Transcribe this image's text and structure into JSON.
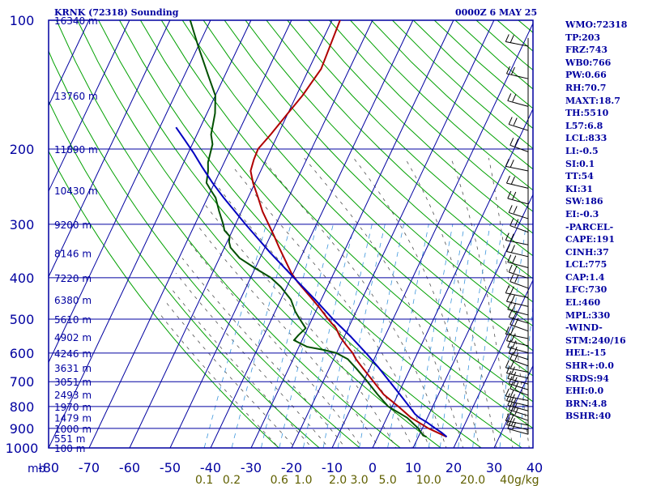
{
  "header": {
    "title": "KRNK (72318) Sounding",
    "datetime": "0000Z  6 MAY 25"
  },
  "stats": [
    "WMO:72318",
    "TP:203",
    "FRZ:743",
    "WB0:766",
    "PW:0.66",
    "RH:70.7",
    "MAXT:18.7",
    "TH:5510",
    "L57:6.8",
    "LCL:833",
    "LI:-0.5",
    "SI:0.1",
    "TT:54",
    "KI:31",
    "SW:186",
    "EI:-0.3",
    "-PARCEL-",
    "CAPE:191",
    "CINH:37",
    "LCL:775",
    "CAP:1.4",
    "LFC:730",
    "EL:460",
    "MPL:330",
    "-WIND-",
    "STM:240/16",
    "HEL:-15",
    "SHR+:0.0",
    "SRDS:94",
    "EHI:0.0",
    "BRN:4.8",
    "BSHR:40"
  ],
  "colors": {
    "frame": "#0000a0",
    "dry_adiabat": "#00a000",
    "moist_adiabat": "#505050",
    "mixing_ratio": "#3c96dc",
    "temperature": "#b00000",
    "dewpoint": "#005000",
    "parcel": "#0000c0",
    "mixing_ratio_labels": "#606000"
  },
  "chart_data": {
    "type": "skew-t",
    "x_axis_unit": "mb",
    "pressure_ticks": [
      100,
      200,
      300,
      400,
      500,
      600,
      700,
      800,
      900,
      1000
    ],
    "pressure_levels": [
      1000,
      950,
      900,
      850,
      800,
      750,
      700,
      650,
      600,
      550,
      500,
      450,
      400,
      350,
      300,
      250,
      200,
      150,
      100
    ],
    "height_labels": [
      {
        "p": 100,
        "label": "16340 m"
      },
      {
        "p": 150,
        "label": "13760 m"
      },
      {
        "p": 200,
        "label": "11890 m"
      },
      {
        "p": 250,
        "label": "10430 m"
      },
      {
        "p": 300,
        "label": "9200 m"
      },
      {
        "p": 350,
        "label": "8146 m"
      },
      {
        "p": 400,
        "label": "7220 m"
      },
      {
        "p": 450,
        "label": "6380 m"
      },
      {
        "p": 500,
        "label": "5610 m"
      },
      {
        "p": 550,
        "label": "4902 m"
      },
      {
        "p": 600,
        "label": "4246 m"
      },
      {
        "p": 650,
        "label": "3631 m"
      },
      {
        "p": 700,
        "label": "3051 m"
      },
      {
        "p": 750,
        "label": "2493 m"
      },
      {
        "p": 800,
        "label": "1970 m"
      },
      {
        "p": 850,
        "label": "1479 m"
      },
      {
        "p": 900,
        "label": "1000 m"
      },
      {
        "p": 950,
        "label": "551 m"
      },
      {
        "p": 1000,
        "label": "100 m"
      }
    ],
    "temperature_ticks": [
      -80,
      -70,
      -60,
      -50,
      -40,
      -30,
      -20,
      -10,
      0,
      10,
      20,
      30,
      40
    ],
    "mixing_ratio_ticks": [
      {
        "w": 0.1,
        "label": "0.1"
      },
      {
        "w": 0.2,
        "label": "0.2"
      },
      {
        "w": 0.6,
        "label": "0.6"
      },
      {
        "w": 1.0,
        "label": "1.0"
      },
      {
        "w": 2.0,
        "label": "2.0"
      },
      {
        "w": 3.0,
        "label": "3.0"
      },
      {
        "w": 5.0,
        "label": "5.0"
      },
      {
        "w": 10.0,
        "label": "10.0"
      },
      {
        "w": 20.0,
        "label": "20.0"
      },
      {
        "w": 40.0,
        "label": "40g/kg"
      }
    ],
    "series": [
      {
        "key": "temperature",
        "points": [
          [
            942,
            17.0
          ],
          [
            900,
            11.5
          ],
          [
            850,
            6.0
          ],
          [
            800,
            1.5
          ],
          [
            750,
            -3.5
          ],
          [
            700,
            -7.5
          ],
          [
            650,
            -11.8
          ],
          [
            620,
            -14.5
          ],
          [
            600,
            -16.0
          ],
          [
            575,
            -18.5
          ],
          [
            550,
            -21.0
          ],
          [
            525,
            -23.0
          ],
          [
            500,
            -26.0
          ],
          [
            470,
            -29.5
          ],
          [
            440,
            -33.5
          ],
          [
            410,
            -37.8
          ],
          [
            390,
            -40.5
          ],
          [
            360,
            -44.0
          ],
          [
            340,
            -46.5
          ],
          [
            320,
            -49.0
          ],
          [
            300,
            -51.8
          ],
          [
            280,
            -54.8
          ],
          [
            260,
            -57.5
          ],
          [
            240,
            -60.5
          ],
          [
            225,
            -62.5
          ],
          [
            212,
            -63.0
          ],
          [
            200,
            -63.2
          ],
          [
            185,
            -61.8
          ],
          [
            165,
            -60.0
          ],
          [
            150,
            -58.5
          ],
          [
            130,
            -57.0
          ],
          [
            100,
            -58.0
          ]
        ]
      },
      {
        "key": "dewpoint",
        "points": [
          [
            942,
            12.0
          ],
          [
            935,
            11.0
          ],
          [
            900,
            9.0
          ],
          [
            850,
            5.0
          ],
          [
            800,
            -1.0
          ],
          [
            750,
            -5.0
          ],
          [
            700,
            -9.0
          ],
          [
            650,
            -13.5
          ],
          [
            620,
            -16.5
          ],
          [
            600,
            -20.0
          ],
          [
            590,
            -23.5
          ],
          [
            580,
            -28.0
          ],
          [
            560,
            -32.0
          ],
          [
            545,
            -31.5
          ],
          [
            525,
            -30.5
          ],
          [
            500,
            -33.0
          ],
          [
            480,
            -35.0
          ],
          [
            450,
            -37.5
          ],
          [
            420,
            -41.5
          ],
          [
            400,
            -45.0
          ],
          [
            380,
            -50.0
          ],
          [
            360,
            -55.0
          ],
          [
            340,
            -58.5
          ],
          [
            330,
            -59.5
          ],
          [
            320,
            -60.0
          ],
          [
            310,
            -62.0
          ],
          [
            300,
            -63.0
          ],
          [
            280,
            -65.5
          ],
          [
            260,
            -68.0
          ],
          [
            250,
            -70.0
          ],
          [
            240,
            -72.0
          ],
          [
            225,
            -73.0
          ],
          [
            215,
            -74.0
          ],
          [
            205,
            -74.5
          ],
          [
            195,
            -75.0
          ],
          [
            185,
            -76.5
          ],
          [
            165,
            -78.0
          ],
          [
            150,
            -80.0
          ],
          [
            135,
            -84.0
          ],
          [
            115,
            -90.0
          ],
          [
            100,
            -95.0
          ]
        ]
      },
      {
        "key": "parcel",
        "points": [
          [
            942,
            17.0
          ],
          [
            920,
            15.2
          ],
          [
            900,
            13.2
          ],
          [
            870,
            10.3
          ],
          [
            850,
            8.0
          ],
          [
            833,
            6.5
          ],
          [
            800,
            4.2
          ],
          [
            750,
            0.5
          ],
          [
            700,
            -3.5
          ],
          [
            650,
            -7.8
          ],
          [
            600,
            -12.7
          ],
          [
            550,
            -18.3
          ],
          [
            500,
            -24.8
          ],
          [
            450,
            -31.5
          ],
          [
            400,
            -39.3
          ],
          [
            350,
            -48.0
          ],
          [
            300,
            -57.5
          ],
          [
            260,
            -66.0
          ],
          [
            240,
            -70.5
          ],
          [
            220,
            -75.0
          ],
          [
            205,
            -78.5
          ],
          [
            190,
            -82.5
          ],
          [
            178,
            -86.0
          ]
        ]
      }
    ]
  }
}
